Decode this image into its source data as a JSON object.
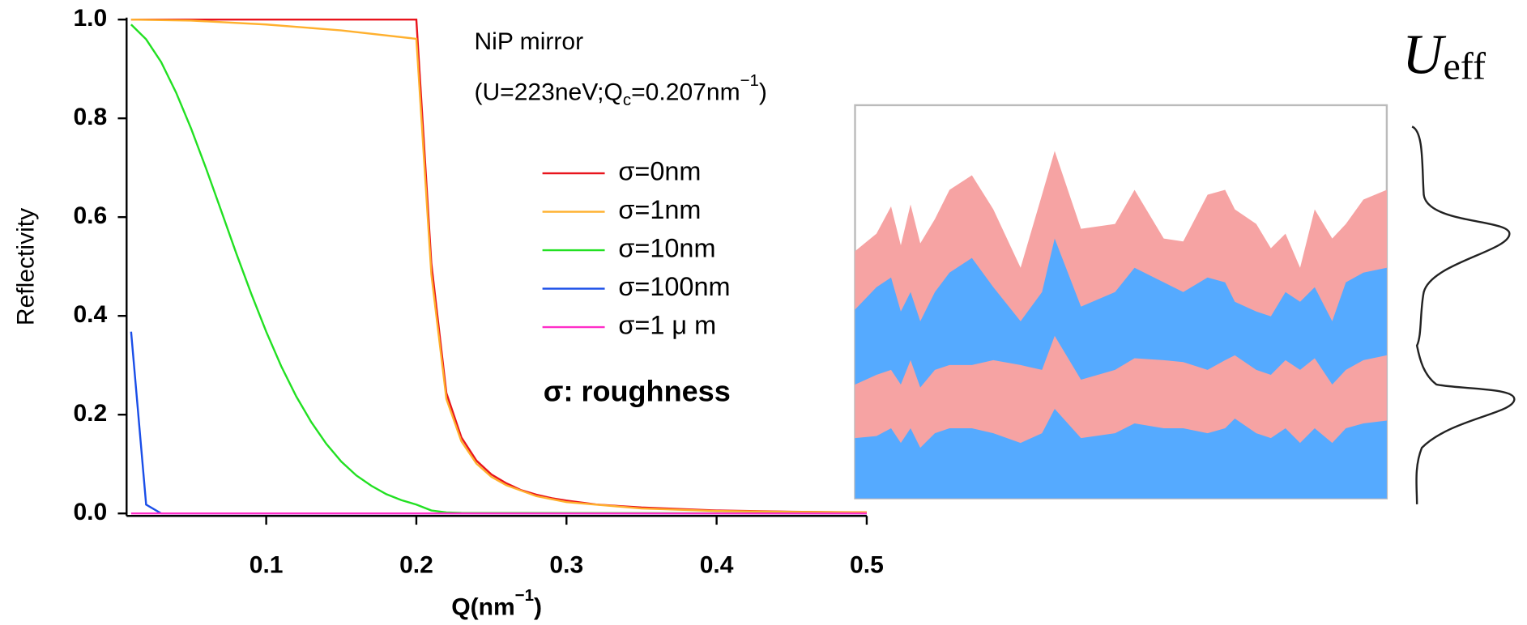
{
  "chart_data": {
    "type": "line",
    "annotations": [
      "NiP mirror",
      [
        "(U=223neV;Q",
        "c",
        "=0.207nm",
        "−1",
        ")"
      ],
      "σ: roughness"
    ],
    "x_label": [
      "Q(nm",
      "−1",
      ")"
    ],
    "y_label": "Reflectivity",
    "side_label": [
      "U",
      "eff"
    ],
    "xlim": [
      0.007,
      0.5
    ],
    "ylim": [
      -0.005,
      1.0
    ],
    "xticks": [
      0.1,
      0.2,
      0.3,
      0.4,
      0.5
    ],
    "yticks": [
      {
        "value": 0,
        "label": "0.0"
      },
      0.2,
      0.4,
      0.6,
      0.8,
      {
        "value": 1,
        "label": "1.0"
      }
    ],
    "series": [
      {
        "name": "σ=0nm",
        "color": "#e8141c",
        "x": [
          0.01,
          0.1,
          0.2,
          0.21,
          0.22,
          0.23,
          0.24,
          0.25,
          0.26,
          0.27,
          0.28,
          0.29,
          0.3,
          0.32,
          0.35,
          0.4,
          0.45,
          0.5
        ],
        "values": [
          1,
          1,
          1,
          0.506,
          0.244,
          0.154,
          0.107,
          0.079,
          0.061,
          0.047,
          0.038,
          0.031,
          0.026,
          0.018,
          0.012,
          0.006,
          0.0035,
          0.0022
        ]
      },
      {
        "name": "σ=1nm",
        "color": "#ffb02e",
        "x": [
          0.01,
          0.05,
          0.1,
          0.15,
          0.2,
          0.21,
          0.22,
          0.23,
          0.24,
          0.25,
          0.26,
          0.28,
          0.3,
          0.35,
          0.4,
          0.45,
          0.5
        ],
        "values": [
          1,
          0.998,
          0.99,
          0.978,
          0.961,
          0.484,
          0.232,
          0.146,
          0.101,
          0.074,
          0.057,
          0.035,
          0.023,
          0.01,
          0.005,
          0.003,
          0.002
        ]
      },
      {
        "name": "σ=10nm",
        "color": "#22e022",
        "x": [
          0.01,
          0.02,
          0.03,
          0.04,
          0.05,
          0.06,
          0.07,
          0.08,
          0.09,
          0.1,
          0.11,
          0.12,
          0.13,
          0.14,
          0.15,
          0.16,
          0.17,
          0.18,
          0.19,
          0.2,
          0.21,
          0.22,
          0.23,
          0.5
        ],
        "values": [
          0.99,
          0.96,
          0.914,
          0.852,
          0.779,
          0.698,
          0.613,
          0.527,
          0.445,
          0.368,
          0.298,
          0.237,
          0.185,
          0.141,
          0.105,
          0.077,
          0.056,
          0.039,
          0.027,
          0.018,
          0.006,
          0.002,
          0.001,
          0
        ]
      },
      {
        "name": "σ=100nm",
        "color": "#1a4ee8",
        "x": [
          0.01,
          0.02,
          0.03,
          0.5
        ],
        "values": [
          0.368,
          0.018,
          0,
          0
        ]
      },
      {
        "name": "σ=1 μ m",
        "color": "#ff2ec8",
        "x": [
          0.01,
          0.5
        ],
        "values": [
          0,
          0
        ]
      }
    ]
  }
}
